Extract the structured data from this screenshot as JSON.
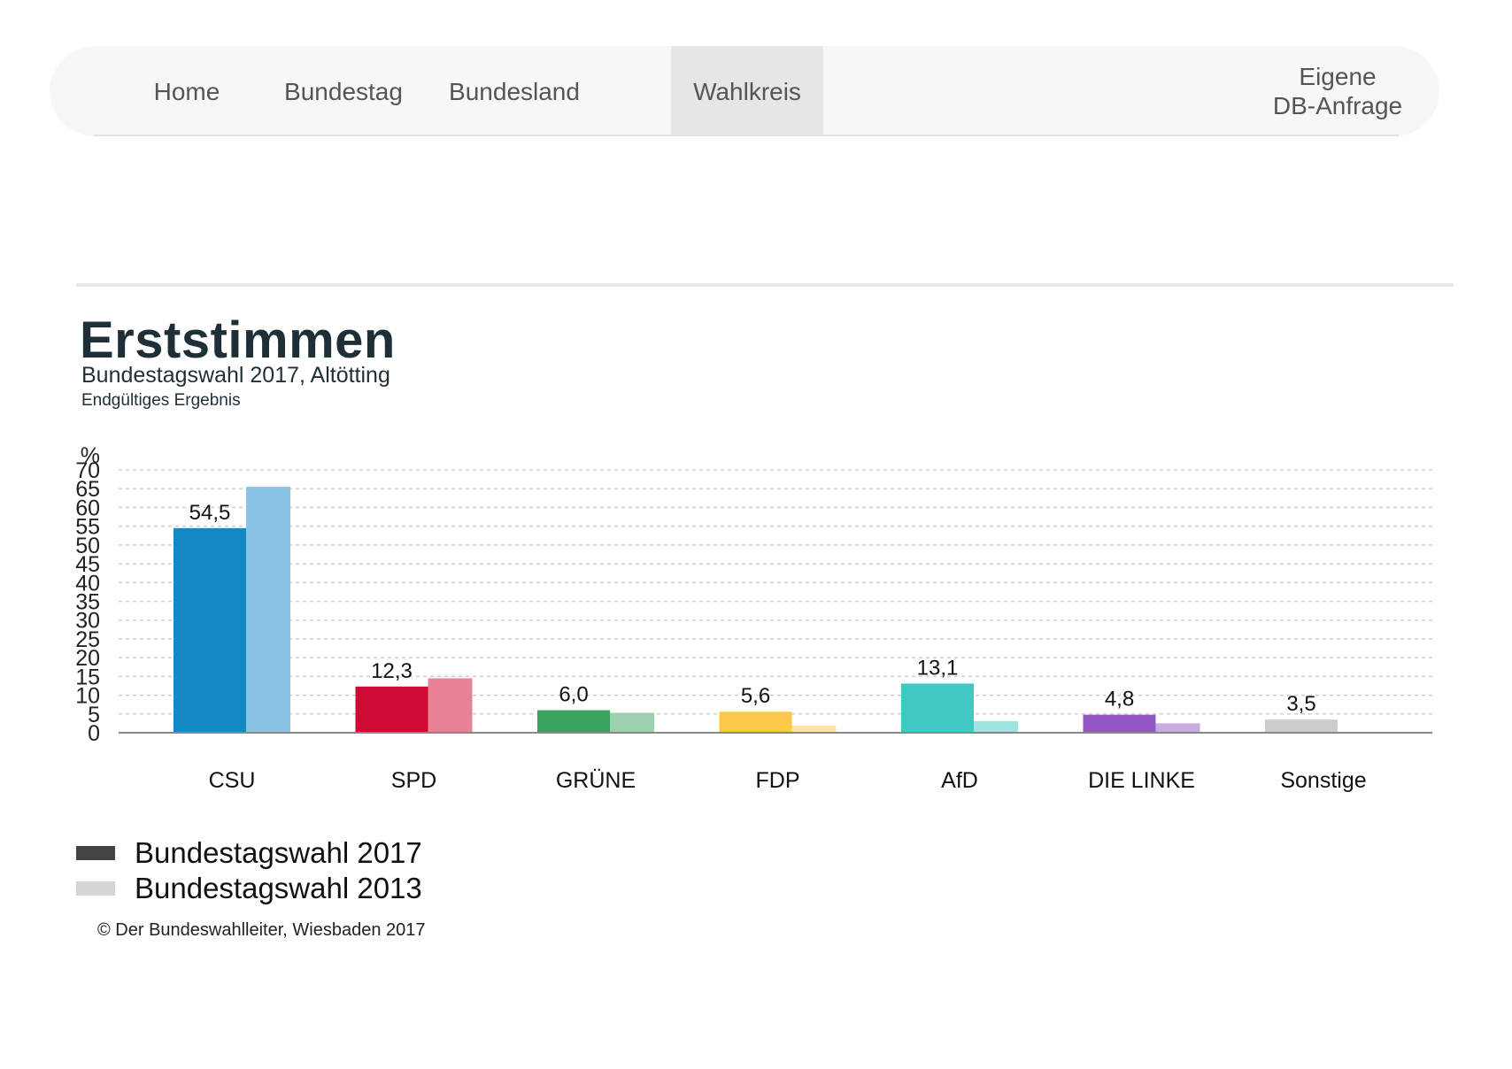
{
  "nav": {
    "items": [
      {
        "label": "Home",
        "active": false
      },
      {
        "label": "Bundestag",
        "active": false
      },
      {
        "label": "Bundesland",
        "active": false
      },
      {
        "label": "Wahlkreis",
        "active": true
      }
    ],
    "custom_query": {
      "line1": "Eigene",
      "line2": "DB-Anfrage"
    }
  },
  "chart_data": {
    "type": "bar",
    "title": "Erststimmen",
    "subtitle": "Bundestagswahl 2017, Altötting",
    "note": "Endgültiges Ergebnis",
    "ylabel": "%",
    "ylim": [
      0,
      70
    ],
    "yticks": [
      0,
      5,
      10,
      15,
      20,
      25,
      30,
      35,
      40,
      45,
      50,
      55,
      60,
      65,
      70
    ],
    "grid": true,
    "categories": [
      "CSU",
      "SPD",
      "GRÜNE",
      "FDP",
      "AfD",
      "DIE LINKE",
      "Sonstige"
    ],
    "series": [
      {
        "name": "Bundestagswahl 2017",
        "values": [
          54.5,
          12.3,
          6.0,
          5.6,
          13.1,
          4.8,
          3.5
        ],
        "labels": [
          "54,5",
          "12,3",
          "6,0",
          "5,6",
          "13,1",
          "4,8",
          "3,5"
        ]
      },
      {
        "name": "Bundestagswahl 2013",
        "values": [
          65.5,
          14.5,
          5.3,
          1.9,
          3.1,
          2.5,
          null
        ]
      }
    ],
    "colors_2017": [
      "#1589c6",
      "#cc0c35",
      "#37a35f",
      "#fdc94a",
      "#3fc9c2",
      "#9358c3",
      "#cccccc"
    ],
    "colors_2013": [
      "#8ac3e3",
      "#e68196",
      "#9bd1af",
      "#fee4a4",
      "#9fe4e0",
      "#c9abe1",
      "#e5e5e5"
    ],
    "legend_colors": [
      "#444444",
      "#d4d4d4"
    ],
    "legend_position": "bottom-left"
  },
  "footer": {
    "copyright": "© Der Bundeswahlleiter, Wiesbaden 2017"
  }
}
